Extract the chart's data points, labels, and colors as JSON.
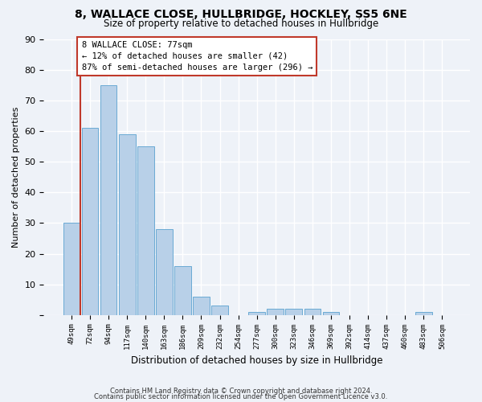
{
  "title1": "8, WALLACE CLOSE, HULLBRIDGE, HOCKLEY, SS5 6NE",
  "title2": "Size of property relative to detached houses in Hullbridge",
  "xlabel": "Distribution of detached houses by size in Hullbridge",
  "ylabel": "Number of detached properties",
  "categories": [
    "49sqm",
    "72sqm",
    "94sqm",
    "117sqm",
    "140sqm",
    "163sqm",
    "186sqm",
    "209sqm",
    "232sqm",
    "254sqm",
    "277sqm",
    "300sqm",
    "323sqm",
    "346sqm",
    "369sqm",
    "392sqm",
    "414sqm",
    "437sqm",
    "460sqm",
    "483sqm",
    "506sqm"
  ],
  "values": [
    30,
    61,
    75,
    59,
    55,
    28,
    16,
    6,
    3,
    0,
    1,
    2,
    2,
    2,
    1,
    0,
    0,
    0,
    0,
    1,
    0
  ],
  "bar_color": "#b8d0e8",
  "bar_edge_color": "#6aaad4",
  "highlight_edge_color": "#c0392b",
  "annotation_text": "8 WALLACE CLOSE: 77sqm\n← 12% of detached houses are smaller (42)\n87% of semi-detached houses are larger (296) →",
  "annotation_box_color": "white",
  "annotation_box_edge_color": "#c0392b",
  "vline_x": 0.5,
  "ylim": [
    0,
    90
  ],
  "yticks": [
    0,
    10,
    20,
    30,
    40,
    50,
    60,
    70,
    80,
    90
  ],
  "footer1": "Contains HM Land Registry data © Crown copyright and database right 2024.",
  "footer2": "Contains public sector information licensed under the Open Government Licence v3.0.",
  "bg_color": "#eef2f8",
  "plot_bg_color": "#eef2f8"
}
